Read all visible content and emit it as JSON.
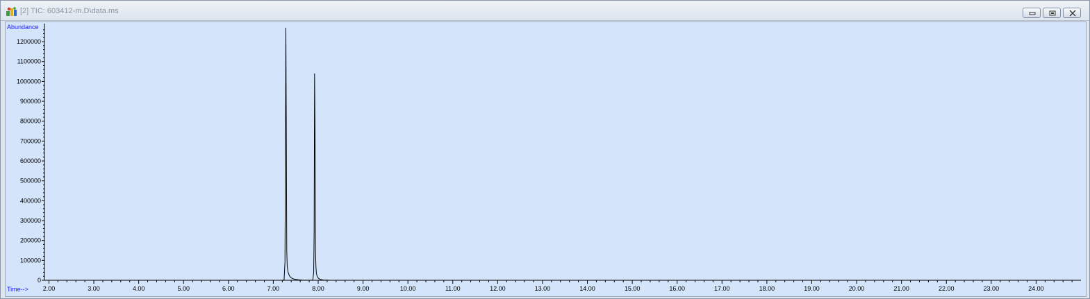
{
  "window": {
    "title": "[2] TIC: 603412-m.D\\data.ms",
    "app_icon": "chemstation-icon",
    "controls": [
      "minimize-icon",
      "restore-icon",
      "close-icon"
    ]
  },
  "colors": {
    "plot_background": "#d3e4fb",
    "trace": "#000000",
    "axis_label": "#1a1aff",
    "title_text": "#8b95a2"
  },
  "chart_data": {
    "type": "line",
    "xlabel": "Time-->",
    "ylabel": "Abundance",
    "xlim": [
      1.9,
      25.0
    ],
    "ylim": [
      0,
      1270000
    ],
    "x_ticks": [
      "2.00",
      "3.00",
      "4.00",
      "5.00",
      "6.00",
      "7.00",
      "8.00",
      "9.00",
      "10.00",
      "11.00",
      "12.00",
      "13.00",
      "14.00",
      "15.00",
      "16.00",
      "17.00",
      "18.00",
      "19.00",
      "20.00",
      "21.00",
      "22.00",
      "23.00",
      "24.00"
    ],
    "y_ticks": [
      "0",
      "100000",
      "200000",
      "300000",
      "400000",
      "500000",
      "600000",
      "700000",
      "800000",
      "900000",
      "1000000",
      "1100000",
      "1200000"
    ],
    "grid": false,
    "legend": "none",
    "series": [
      {
        "x": [
          1.9,
          7.2,
          7.24,
          7.26,
          7.27,
          7.28,
          7.29,
          7.3,
          7.31,
          7.33,
          7.36,
          7.4,
          7.46,
          7.55,
          7.65,
          7.8,
          7.88,
          7.9,
          7.91,
          7.92,
          7.93,
          7.94,
          7.95,
          7.96,
          7.98,
          8.01,
          8.05,
          8.12,
          8.25,
          8.45,
          9.0,
          12.0,
          25.0
        ],
        "y": [
          0,
          0,
          2000,
          90000,
          600000,
          1270000,
          750000,
          150000,
          70000,
          40000,
          22000,
          12000,
          6000,
          2500,
          1000,
          300,
          1000,
          40000,
          240000,
          1040000,
          750000,
          150000,
          70000,
          35000,
          18000,
          9000,
          4000,
          1500,
          500,
          100,
          0,
          0,
          0
        ]
      }
    ]
  }
}
